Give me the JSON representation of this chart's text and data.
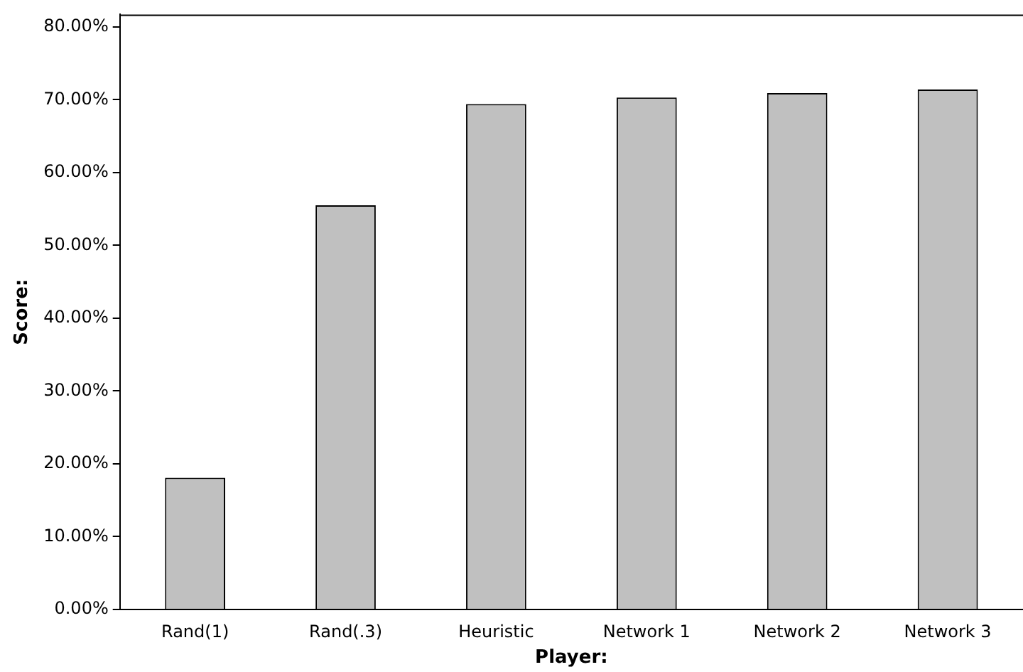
{
  "chart_data": {
    "type": "bar",
    "xlabel": "Player:",
    "ylabel": "Score:",
    "categories": [
      "Rand(1)",
      "Rand(.3)",
      "Heuristic",
      "Network 1",
      "Network 2",
      "Network 3"
    ],
    "values": [
      18.1,
      55.5,
      69.4,
      70.3,
      70.9,
      71.4
    ],
    "color": "#c0c0c0",
    "ylim": [
      0,
      81.7
    ],
    "yticks": [
      {
        "value": 0,
        "label": "0.00%"
      },
      {
        "value": 10,
        "label": "10.00%"
      },
      {
        "value": 20,
        "label": "20.00%"
      },
      {
        "value": 30,
        "label": "30.00%"
      },
      {
        "value": 40,
        "label": "40.00%"
      },
      {
        "value": 50,
        "label": "50.00%"
      },
      {
        "value": 60,
        "label": "60.00%"
      },
      {
        "value": 70,
        "label": "70.00%"
      },
      {
        "value": 80,
        "label": "80.00%"
      }
    ],
    "grid": false,
    "legend": false
  }
}
